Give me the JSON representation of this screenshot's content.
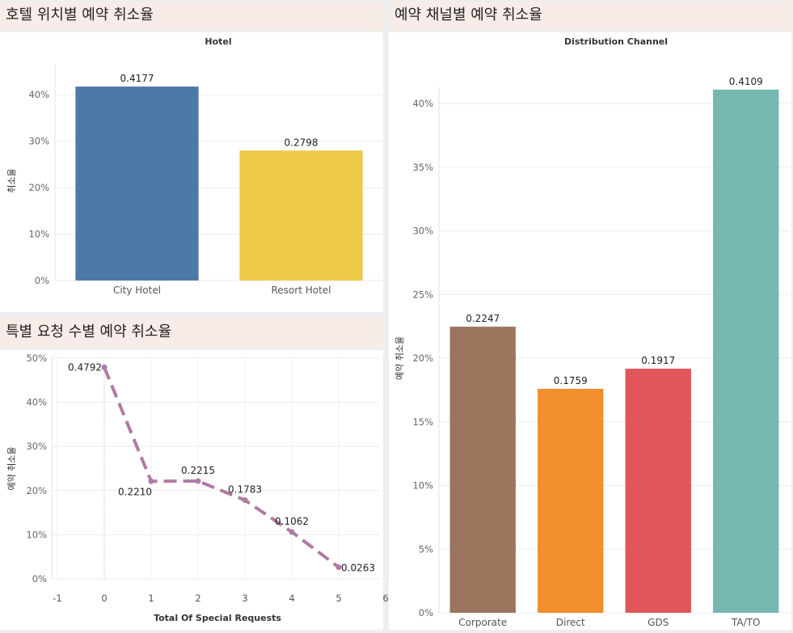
{
  "dashboard": {
    "panel_hotel_title": "호텔 위치별 예약 취소율",
    "panel_requests_title": "특별 요청 수별 예약 취소율",
    "panel_channel_title": "예약 채널별 예약 취소율"
  },
  "chart_data": [
    {
      "id": "hotel",
      "type": "bar",
      "title": "Hotel",
      "xlabel": "",
      "ylabel": "취소율",
      "categories": [
        "City Hotel",
        "Resort Hotel"
      ],
      "values": [
        0.4177,
        0.2798
      ],
      "data_labels": [
        "0.4177",
        "0.2798"
      ],
      "colors": [
        "#4e79a7",
        "#edc948"
      ],
      "ylim": [
        0,
        0.43
      ],
      "yticks": [
        0,
        0.1,
        0.2,
        0.3,
        0.4
      ],
      "ytick_labels": [
        "0%",
        "10%",
        "20%",
        "30%",
        "40%"
      ],
      "grid": true
    },
    {
      "id": "requests",
      "type": "line",
      "title": "",
      "xlabel": "Total Of Special Requests",
      "ylabel": "예약 취소율",
      "x": [
        0,
        1,
        2,
        3,
        4,
        5
      ],
      "values": [
        0.4792,
        0.221,
        0.2215,
        0.1783,
        0.1062,
        0.0263
      ],
      "data_labels": [
        "0.4792",
        "0.2210",
        "0.2215",
        "0.1783",
        "0.1062",
        "0.0263"
      ],
      "color": "#b07aa1",
      "line_style": "dashed",
      "xlim": [
        -1,
        6
      ],
      "xticks": [
        -1,
        0,
        1,
        2,
        3,
        4,
        5,
        6
      ],
      "xtick_labels": [
        "-1",
        "0",
        "1",
        "2",
        "3",
        "4",
        "5",
        "6"
      ],
      "ylim": [
        0,
        0.5
      ],
      "yticks": [
        0,
        0.1,
        0.2,
        0.3,
        0.4,
        0.5
      ],
      "ytick_labels": [
        "0%",
        "10%",
        "20%",
        "30%",
        "40%",
        "50%"
      ],
      "grid": true
    },
    {
      "id": "channel",
      "type": "bar",
      "title": "Distribution Channel",
      "xlabel": "",
      "ylabel": "예약 취소율",
      "categories": [
        "Corporate",
        "Direct",
        "GDS",
        "TA/TO"
      ],
      "values": [
        0.2247,
        0.1759,
        0.1917,
        0.4109
      ],
      "data_labels": [
        "0.2247",
        "0.1759",
        "0.1917",
        "0.4109"
      ],
      "colors": [
        "#9c755f",
        "#f28e2b",
        "#e15759",
        "#76b7b2"
      ],
      "ylim": [
        0,
        0.4
      ],
      "yticks": [
        0,
        0.05,
        0.1,
        0.15,
        0.2,
        0.25,
        0.3,
        0.35,
        0.4
      ],
      "ytick_labels": [
        "0%",
        "5%",
        "10%",
        "15%",
        "20%",
        "25%",
        "30%",
        "35%",
        "40%"
      ],
      "grid": true
    }
  ]
}
